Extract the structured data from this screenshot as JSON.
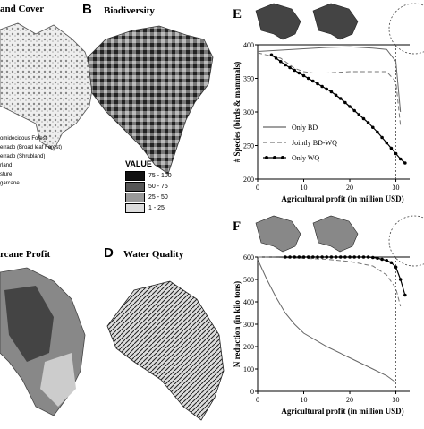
{
  "panels": {
    "A": {
      "label": "",
      "title": "and Cover",
      "legend": [
        "omidecidous Forest",
        "errado (Broad leaf Forest)",
        "errado (Shrubland)",
        "rland",
        "sture",
        "garcane"
      ]
    },
    "B": {
      "label": "B",
      "title": "Biodiversity"
    },
    "C": {
      "label": "",
      "title": "rcane Profit"
    },
    "D": {
      "label": "D",
      "title": "Water Quality"
    },
    "value_legend": {
      "title": "VALUE",
      "bins": [
        "75 - 100",
        "50 - 75",
        "25 - 50",
        "1 - 25"
      ],
      "colors": [
        "#111111",
        "#555555",
        "#999999",
        "#dddddd"
      ]
    }
  },
  "chart_data": [
    {
      "type": "line",
      "panel_label": "E",
      "title": "",
      "xlabel": "Agricultural profit (in million USD)",
      "ylabel": "# Species (birds & mammals)",
      "xlim": [
        0,
        33
      ],
      "ylim": [
        200,
        400
      ],
      "xticks": [
        0,
        10,
        20,
        30
      ],
      "yticks": [
        200,
        250,
        300,
        350,
        400
      ],
      "legend_position": "lower-left",
      "series": [
        {
          "name": "Only BD",
          "style": "solid",
          "x": [
            0,
            5,
            10,
            15,
            20,
            25,
            28,
            30,
            31
          ],
          "y": [
            390,
            392,
            394,
            396,
            397,
            395,
            393,
            375,
            300
          ]
        },
        {
          "name": "Jointly BD-WQ",
          "style": "dashed",
          "x": [
            0,
            5,
            8,
            10,
            12,
            15,
            20,
            25,
            28,
            30,
            31
          ],
          "y": [
            388,
            380,
            365,
            360,
            358,
            358,
            360,
            360,
            360,
            345,
            280
          ]
        },
        {
          "name": "Only WQ",
          "style": "markers",
          "x": [
            3,
            4,
            5,
            6,
            7,
            8,
            9,
            10,
            11,
            12,
            13,
            14,
            15,
            16,
            17,
            18,
            19,
            20,
            21,
            22,
            23,
            24,
            25,
            26,
            27,
            28,
            29,
            30,
            31,
            32
          ],
          "y": [
            385,
            380,
            375,
            370,
            366,
            362,
            358,
            354,
            350,
            346,
            342,
            338,
            334,
            330,
            325,
            320,
            314,
            308,
            302,
            296,
            290,
            284,
            277,
            270,
            262,
            254,
            246,
            238,
            230,
            224
          ]
        }
      ]
    },
    {
      "type": "line",
      "panel_label": "F",
      "title": "",
      "xlabel": "Agricultural profit (in million USD)",
      "ylabel": "N reduction (in kilo tons)",
      "xlim": [
        0,
        33
      ],
      "ylim": [
        0,
        600
      ],
      "xticks": [
        0,
        10,
        20,
        30
      ],
      "yticks": [
        0,
        100,
        200,
        300,
        400,
        500,
        600
      ],
      "series": [
        {
          "name": "Only BD",
          "style": "solid",
          "x": [
            0,
            2,
            4,
            6,
            8,
            10,
            15,
            20,
            25,
            28,
            30
          ],
          "y": [
            590,
            500,
            420,
            350,
            300,
            260,
            200,
            150,
            100,
            70,
            40
          ]
        },
        {
          "name": "Jointly BD-WQ",
          "style": "dashed",
          "x": [
            0,
            5,
            10,
            15,
            20,
            25,
            28,
            30,
            31
          ],
          "y": [
            600,
            598,
            595,
            590,
            580,
            560,
            520,
            460,
            380
          ]
        },
        {
          "name": "Only WQ",
          "style": "markers",
          "x": [
            6,
            7,
            8,
            9,
            10,
            11,
            12,
            13,
            14,
            15,
            16,
            17,
            18,
            19,
            20,
            21,
            22,
            23,
            24,
            25,
            26,
            27,
            28,
            29,
            30,
            31,
            32
          ],
          "y": [
            600,
            600,
            600,
            600,
            600,
            600,
            600,
            600,
            600,
            600,
            600,
            600,
            600,
            600,
            600,
            600,
            600,
            600,
            600,
            598,
            595,
            590,
            585,
            575,
            555,
            500,
            430
          ]
        }
      ]
    }
  ]
}
